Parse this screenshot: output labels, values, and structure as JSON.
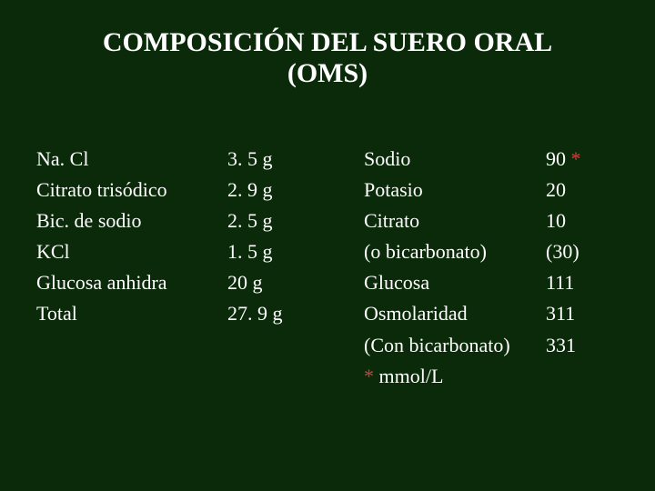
{
  "colors": {
    "background": "#0a2a0a",
    "text": "#ffffff",
    "asterisk": "#d04040"
  },
  "typography": {
    "title_fontsize": 30,
    "body_fontsize": 22,
    "font_family": "Georgia, serif",
    "line_height": 1.55
  },
  "title": "COMPOSICIÓN DEL SUERO ORAL (OMS)",
  "left_table": {
    "rows": [
      {
        "ingredient": "Na. Cl",
        "amount": "3. 5 g"
      },
      {
        "ingredient": "Citrato trisódico",
        "amount": "2. 9 g"
      },
      {
        "ingredient": "Bic. de sodio",
        "amount": "2. 5 g"
      },
      {
        "ingredient": "KCl",
        "amount": "1. 5 g"
      },
      {
        "ingredient": "Glucosa anhidra",
        "amount": "20 g"
      },
      {
        "ingredient": "Total",
        "amount": "27. 9 g"
      }
    ]
  },
  "right_table": {
    "rows": [
      {
        "component": "Sodio",
        "value": "90 ",
        "marker": "*"
      },
      {
        "component": "Potasio",
        "value": "20",
        "marker": ""
      },
      {
        "component": "Citrato",
        "value": "10",
        "marker": ""
      },
      {
        "component": "(o bicarbonato)",
        "value": "(30)",
        "marker": ""
      },
      {
        "component": "Glucosa",
        "value": "111",
        "marker": ""
      },
      {
        "component": "Osmolaridad",
        "value": "311",
        "marker": ""
      },
      {
        "component": "(Con bicarbonato)",
        "value": "331",
        "marker": ""
      }
    ],
    "footnote_marker": "*",
    "footnote_text": " mmol/L"
  }
}
